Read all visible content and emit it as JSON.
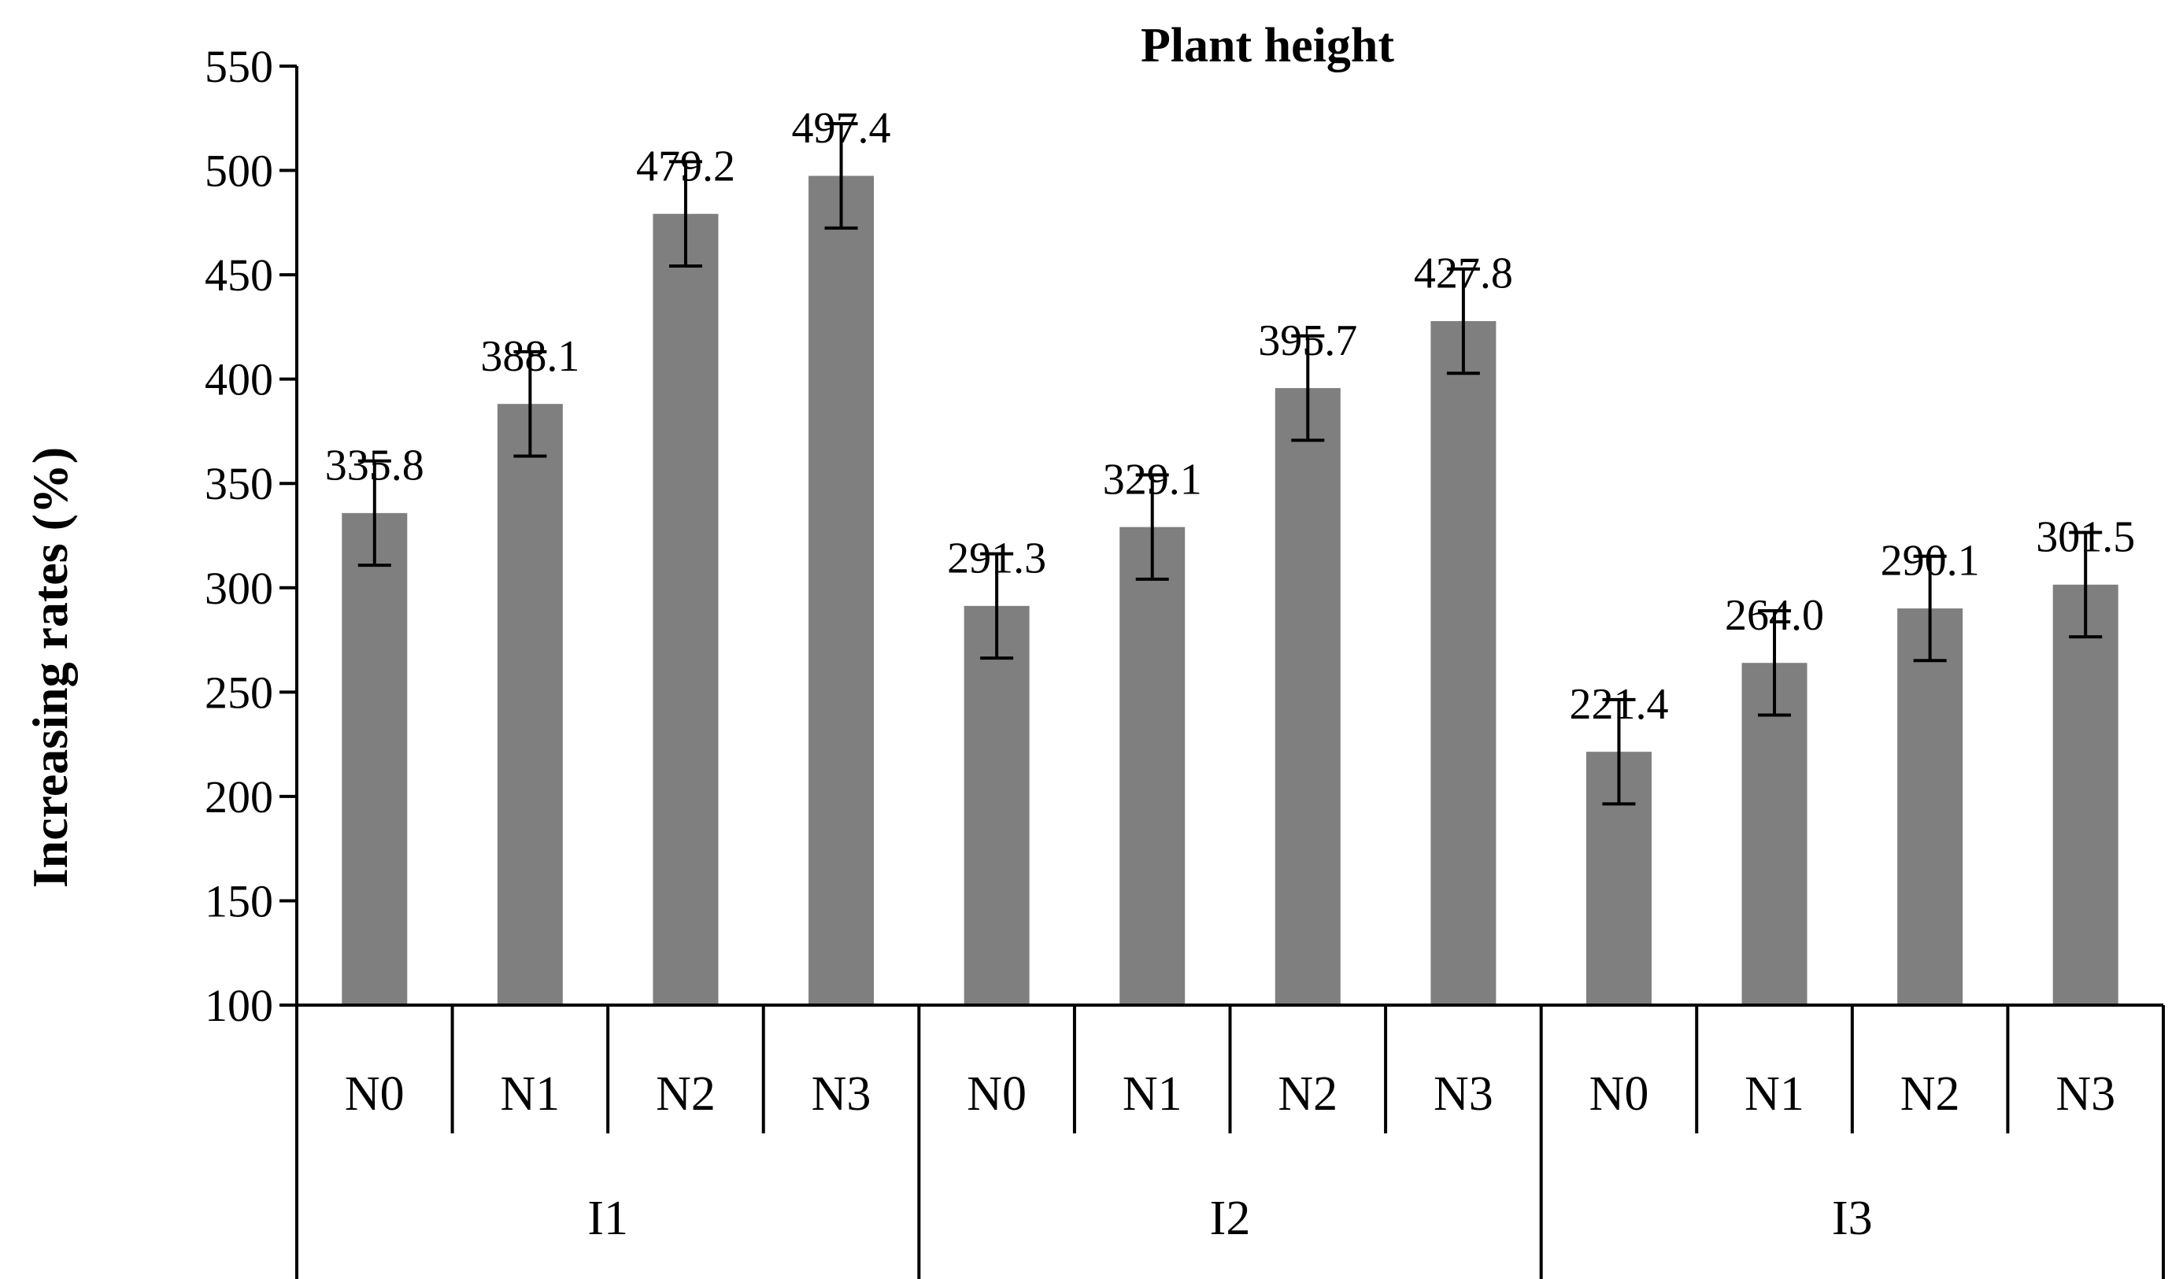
{
  "chart_data": {
    "type": "bar",
    "title": "Plant height",
    "xlabel": "",
    "ylabel": "Increasing rates (%)",
    "ylim": [
      100,
      550
    ],
    "yticks": [
      100,
      150,
      200,
      250,
      300,
      350,
      400,
      450,
      500,
      550
    ],
    "grid": false,
    "bar_color": "#7f7f7f",
    "groups": [
      {
        "name": "I1",
        "categories": [
          "N0",
          "N1",
          "N2",
          "N3"
        ],
        "values": [
          335.8,
          388.1,
          479.2,
          497.4
        ],
        "value_labels": [
          "335.8",
          "388.1",
          "479.2",
          "497.4"
        ],
        "errors": [
          25,
          25,
          25,
          25
        ]
      },
      {
        "name": "I2",
        "categories": [
          "N0",
          "N1",
          "N2",
          "N3"
        ],
        "values": [
          291.3,
          329.1,
          395.7,
          427.8
        ],
        "value_labels": [
          "291.3",
          "329.1",
          "395.7",
          "427.8"
        ],
        "errors": [
          25,
          25,
          25,
          25
        ]
      },
      {
        "name": "I3",
        "categories": [
          "N0",
          "N1",
          "N2",
          "N3"
        ],
        "values": [
          221.4,
          264.0,
          290.1,
          301.5
        ],
        "value_labels": [
          "221.4",
          "264.0",
          "290.1",
          "301.5"
        ],
        "errors": [
          25,
          25,
          25,
          25
        ]
      }
    ]
  }
}
